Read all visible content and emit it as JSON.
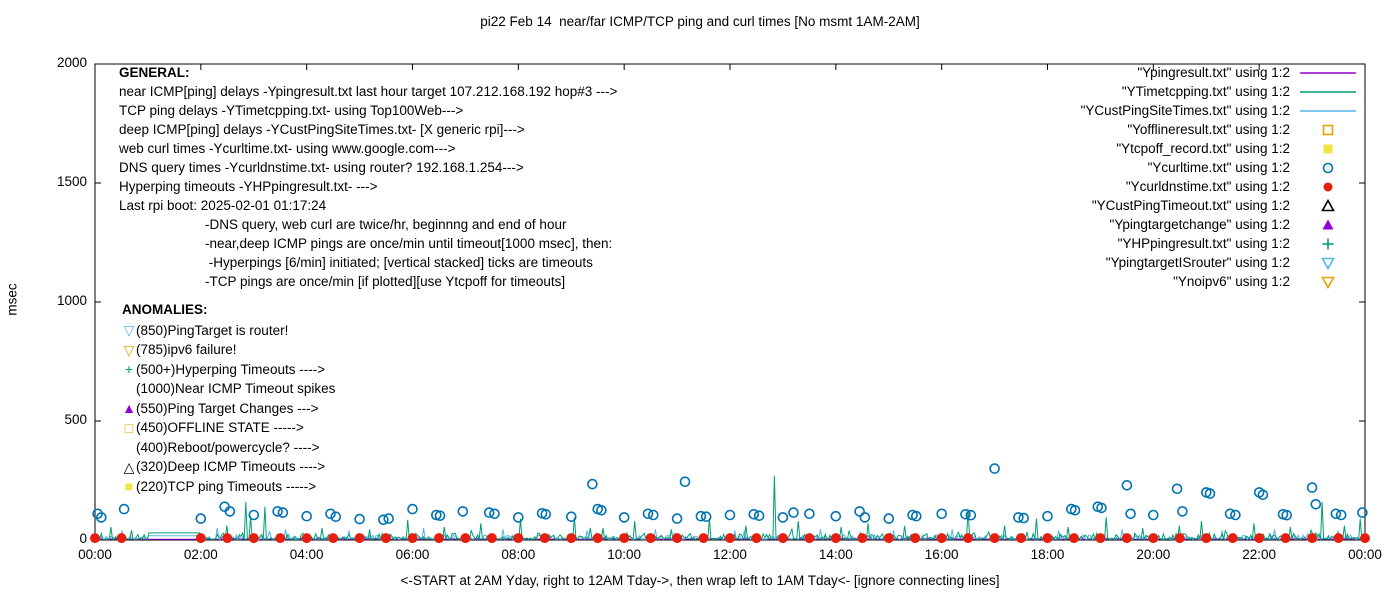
{
  "title": "pi22 Feb 14  near/far ICMP/TCP ping and curl times [No msmt 1AM-2AM]",
  "chart_data": {
    "type": "scatter",
    "title": "pi22 Feb 14  near/far ICMP/TCP ping and curl times [No msmt 1AM-2AM]",
    "xlabel": "<-START at 2AM Yday, right to 12AM Tday->, then wrap left to 1AM Tday<- [ignore connecting lines]",
    "ylabel": "msec",
    "ylim": [
      0,
      2000
    ],
    "yticks": [
      0,
      500,
      1000,
      1500,
      2000
    ],
    "xticks": [
      "00:00",
      "02:00",
      "04:00",
      "06:00",
      "08:00",
      "10:00",
      "12:00",
      "14:00",
      "16:00",
      "18:00",
      "20:00",
      "22:00",
      "00:00"
    ],
    "x_hours_range": [
      0,
      24
    ],
    "no_measurement_gap_hours": [
      1,
      2
    ],
    "grid": false,
    "legend_position": "top-right-inside",
    "legend": [
      {
        "label": "\"Ypingresult.txt\" using 1:2",
        "marker": "line",
        "color": "#9400d3"
      },
      {
        "label": "\"YTimetcpping.txt\" using 1:2",
        "marker": "line",
        "color": "#009e73"
      },
      {
        "label": "\"YCustPingSiteTimes.txt\" using 1:2",
        "marker": "line",
        "color": "#56b4e9"
      },
      {
        "label": "\"Yofflineresult.txt\" using 1:2",
        "marker": "square-open",
        "color": "#e69f00"
      },
      {
        "label": "\"Ytcpoff_record.txt\" using 1:2",
        "marker": "square-filled",
        "color": "#f0e442"
      },
      {
        "label": "\"Ycurltime.txt\" using 1:2",
        "marker": "circle-open",
        "color": "#0072b2"
      },
      {
        "label": "\"Ycurldnstime.txt\" using 1:2",
        "marker": "circle-filled",
        "color": "#e51e10"
      },
      {
        "label": "\"YCustPingTimeout.txt\" using 1:2",
        "marker": "triangle-up-open",
        "color": "#000000"
      },
      {
        "label": "\"Ypingtargetchange\" using 1:2",
        "marker": "triangle-up-filled",
        "color": "#9400d3"
      },
      {
        "label": "\"YHPpingresult.txt\" using 1:2",
        "marker": "plus",
        "color": "#009e73"
      },
      {
        "label": "\"YpingtargetISrouter\" using 1:2",
        "marker": "triangle-down-open",
        "color": "#56b4e9"
      },
      {
        "label": "\"Ynoipv6\" using 1:2",
        "marker": "triangle-down-open",
        "color": "#e69f00"
      }
    ],
    "series": [
      {
        "name": "Ypingresult.txt",
        "type": "line",
        "color": "#9400d3",
        "base": 3,
        "amp": 4,
        "seed": 11,
        "gap_value": 3,
        "spikes": []
      },
      {
        "name": "YCustPingSiteTimes.txt",
        "type": "line",
        "color": "#56b4e9",
        "base": 3,
        "amp": 18,
        "seed": 33,
        "gap_value": 18,
        "spikes": [
          [
            0.5,
            40
          ],
          [
            2.3,
            50
          ],
          [
            3.6,
            45
          ],
          [
            4.8,
            40
          ],
          [
            6.2,
            50
          ],
          [
            7.7,
            45
          ],
          [
            9.3,
            40
          ],
          [
            10.6,
            45
          ],
          [
            12.1,
            40
          ],
          [
            13.7,
            45
          ],
          [
            15.1,
            40
          ],
          [
            16.2,
            45
          ],
          [
            18.2,
            40
          ],
          [
            19.4,
            45
          ],
          [
            21.3,
            40
          ],
          [
            22.3,
            45
          ],
          [
            23.5,
            40
          ]
        ]
      },
      {
        "name": "YTimetcpping.txt",
        "type": "line",
        "color": "#009e73",
        "base": 3,
        "amp": 26,
        "seed": 22,
        "gap_value": 30,
        "spikes": [
          [
            0.3,
            55
          ],
          [
            0.7,
            40
          ],
          [
            2.5,
            60
          ],
          [
            2.85,
            160
          ],
          [
            2.95,
            100
          ],
          [
            3.2,
            140
          ],
          [
            4.3,
            50
          ],
          [
            5.2,
            45
          ],
          [
            5.9,
            85
          ],
          [
            6.6,
            55
          ],
          [
            7.3,
            70
          ],
          [
            8.05,
            90
          ],
          [
            9.05,
            95
          ],
          [
            9.6,
            50
          ],
          [
            10.2,
            80
          ],
          [
            10.9,
            45
          ],
          [
            11.6,
            90
          ],
          [
            12.3,
            60
          ],
          [
            12.85,
            270
          ],
          [
            13.3,
            80
          ],
          [
            14.1,
            55
          ],
          [
            14.6,
            70
          ],
          [
            15.3,
            60
          ],
          [
            16.5,
            130
          ],
          [
            17.2,
            60
          ],
          [
            17.8,
            90
          ],
          [
            18.4,
            55
          ],
          [
            19.1,
            95
          ],
          [
            19.8,
            50
          ],
          [
            20.5,
            60
          ],
          [
            20.9,
            80
          ],
          [
            21.9,
            70
          ],
          [
            22.6,
            55
          ],
          [
            23.2,
            160
          ],
          [
            23.6,
            60
          ],
          [
            23.9,
            90
          ]
        ]
      },
      {
        "name": "Ycurltime.txt",
        "type": "points",
        "marker": "circle-open",
        "color": "#0072b2",
        "points": [
          [
            0.05,
            110
          ],
          [
            0.12,
            95
          ],
          [
            0.55,
            130
          ],
          [
            2.0,
            90
          ],
          [
            2.45,
            140
          ],
          [
            2.55,
            120
          ],
          [
            3.0,
            105
          ],
          [
            3.45,
            120
          ],
          [
            3.55,
            115
          ],
          [
            4.0,
            100
          ],
          [
            4.45,
            110
          ],
          [
            4.55,
            98
          ],
          [
            5.0,
            88
          ],
          [
            5.45,
            85
          ],
          [
            5.55,
            90
          ],
          [
            6.0,
            130
          ],
          [
            6.45,
            105
          ],
          [
            6.52,
            102
          ],
          [
            6.95,
            120
          ],
          [
            7.45,
            115
          ],
          [
            7.55,
            110
          ],
          [
            8.0,
            95
          ],
          [
            8.45,
            112
          ],
          [
            8.52,
            108
          ],
          [
            9.0,
            98
          ],
          [
            9.4,
            235
          ],
          [
            9.5,
            130
          ],
          [
            9.57,
            125
          ],
          [
            10.0,
            95
          ],
          [
            10.45,
            110
          ],
          [
            10.55,
            105
          ],
          [
            11.0,
            90
          ],
          [
            11.15,
            245
          ],
          [
            11.45,
            100
          ],
          [
            11.55,
            98
          ],
          [
            12.0,
            105
          ],
          [
            12.45,
            108
          ],
          [
            12.55,
            102
          ],
          [
            13.0,
            95
          ],
          [
            13.2,
            115
          ],
          [
            13.5,
            110
          ],
          [
            14.0,
            100
          ],
          [
            14.45,
            120
          ],
          [
            14.55,
            95
          ],
          [
            15.0,
            90
          ],
          [
            15.45,
            105
          ],
          [
            15.52,
            100
          ],
          [
            16.0,
            110
          ],
          [
            16.45,
            108
          ],
          [
            16.55,
            104
          ],
          [
            17.0,
            300
          ],
          [
            17.45,
            95
          ],
          [
            17.55,
            92
          ],
          [
            18.0,
            100
          ],
          [
            18.45,
            130
          ],
          [
            18.52,
            125
          ],
          [
            18.95,
            140
          ],
          [
            19.02,
            135
          ],
          [
            19.5,
            230
          ],
          [
            19.57,
            110
          ],
          [
            20.0,
            105
          ],
          [
            20.45,
            215
          ],
          [
            20.55,
            120
          ],
          [
            21.0,
            200
          ],
          [
            21.07,
            195
          ],
          [
            21.45,
            110
          ],
          [
            21.55,
            105
          ],
          [
            22.0,
            200
          ],
          [
            22.07,
            190
          ],
          [
            22.45,
            108
          ],
          [
            22.52,
            104
          ],
          [
            23.0,
            220
          ],
          [
            23.07,
            150
          ],
          [
            23.45,
            110
          ],
          [
            23.55,
            105
          ],
          [
            23.95,
            115
          ]
        ]
      },
      {
        "name": "Ycurldnstime.txt",
        "type": "points-const",
        "marker": "circle-filled",
        "color": "#e51e10",
        "value": 8,
        "hours": [
          0,
          0.5,
          2,
          2.5,
          3,
          3.5,
          4,
          4.5,
          5,
          5.5,
          6,
          6.5,
          7,
          7.5,
          8,
          8.5,
          9,
          9.5,
          10,
          10.5,
          11,
          11.5,
          12,
          12.5,
          13,
          13.5,
          14,
          14.5,
          15,
          15.5,
          16,
          16.5,
          17,
          17.5,
          18,
          18.5,
          19,
          19.5,
          20,
          20.5,
          21,
          21.5,
          22,
          22.5,
          23,
          23.5,
          24
        ]
      }
    ]
  },
  "annotations": {
    "general_header": "GENERAL:",
    "general_lines": [
      "near ICMP[ping] delays -Ypingresult.txt last hour target 107.212.168.192 hop#3 --->",
      "TCP ping delays -YTimetcpping.txt- using Top100Web--->",
      "deep ICMP[ping] delays -YCustPingSiteTimes.txt- [X generic rpi]--->",
      "web curl times -Ycurltime.txt- using www.google.com--->",
      "DNS query times -Ycurldnstime.txt- using router? 192.168.1.254--->",
      "Hyperping timeouts -YHPpingresult.txt- --->",
      "Last rpi boot: 2025-02-01 01:17:24"
    ],
    "notes_lines": [
      "-DNS query, web curl are twice/hr, beginnng and end of hour",
      "-near,deep ICMP pings are once/min until timeout[1000 msec], then:",
      " -Hyperpings [6/min] initiated; [vertical stacked] ticks are timeouts",
      "-TCP pings are once/min [if plotted][use Ytcpoff for timeouts]"
    ],
    "anomalies_header": "ANOMALIES:",
    "anomalies": [
      {
        "marker": "triangle-down-open",
        "color": "#56b4e9",
        "text": "(850)PingTarget is router!"
      },
      {
        "marker": "triangle-down-open",
        "color": "#e69f00",
        "text": "(785)ipv6 failure!"
      },
      {
        "marker": "plus",
        "color": "#009e73",
        "text": "(500+)Hyperping Timeouts ---->"
      },
      {
        "marker": "none",
        "color": "#000000",
        "text": "(1000)Near ICMP Timeout spikes"
      },
      {
        "marker": "triangle-up-filled",
        "color": "#9400d3",
        "text": "(550)Ping Target Changes --->"
      },
      {
        "marker": "square-open",
        "color": "#e69f00",
        "text": "(450)OFFLINE STATE ----->"
      },
      {
        "marker": "none",
        "color": "#000000",
        "text": "(400)Reboot/powercycle? ---->"
      },
      {
        "marker": "triangle-up-open",
        "color": "#000000",
        "text": "(320)Deep ICMP Timeouts ---->"
      },
      {
        "marker": "square-filled",
        "color": "#f0e442",
        "text": "(220)TCP ping Timeouts ----->"
      }
    ]
  }
}
